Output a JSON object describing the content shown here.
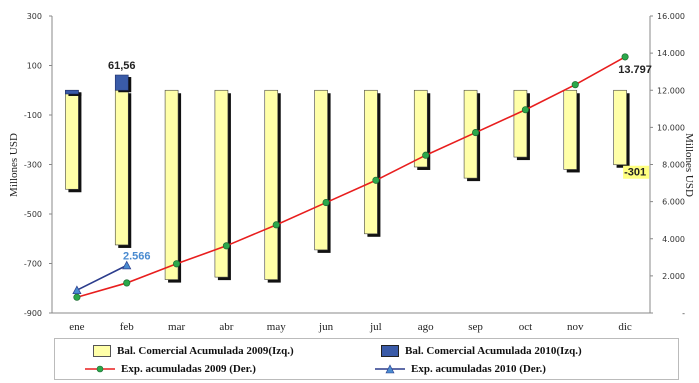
{
  "chart_data": {
    "type": "bar+line",
    "categories": [
      "ene",
      "feb",
      "mar",
      "abr",
      "may",
      "jun",
      "jul",
      "ago",
      "sep",
      "oct",
      "nov",
      "dic"
    ],
    "left_axis": {
      "label": "Millones USD",
      "range": [
        -900,
        300
      ],
      "ticks": [
        "300",
        "100",
        "-100",
        "-300",
        "-500",
        "-700",
        "-900"
      ]
    },
    "right_axis": {
      "label": "Millones USD",
      "range": [
        0,
        16000
      ],
      "ticks": [
        "16.000",
        "14.000",
        "12.000",
        "10.000",
        "8.000",
        "6.000",
        "4.000",
        "2.000",
        "-"
      ]
    },
    "bar_series": [
      {
        "name": "Bal. Comercial Acumulada 2009(Izq.)",
        "color": "#FFFFA8",
        "axis": "left",
        "values": [
          -400,
          -625,
          -765,
          -755,
          -765,
          -645,
          -580,
          -310,
          -355,
          -270,
          -320,
          -301
        ]
      },
      {
        "name": "Bal. Comercial Acumulada 2010(Izq.)",
        "color": "#3A5BA8",
        "axis": "left",
        "values": [
          -15,
          61.56,
          null,
          null,
          null,
          null,
          null,
          null,
          null,
          null,
          null,
          null
        ]
      }
    ],
    "line_series": [
      {
        "name": "Exp. acumuladas 2009 (Der.)",
        "color": "#E81E1E",
        "marker": "circle",
        "marker_color": "#2BA84A",
        "axis": "right",
        "values": [
          850,
          1620,
          2650,
          3620,
          4750,
          5950,
          7150,
          8500,
          9720,
          10950,
          12300,
          13797
        ]
      },
      {
        "name": "Exp. acumuladas 2010 (Der.)",
        "color": "#2B3C8C",
        "marker": "triangle",
        "marker_color": "#4A8BD0",
        "axis": "right",
        "values": [
          1230,
          2566,
          null,
          null,
          null,
          null,
          null,
          null,
          null,
          null,
          null,
          null
        ]
      }
    ],
    "data_labels": [
      {
        "text": "61,56",
        "series": "bar2010",
        "index": 1,
        "color": "#222222"
      },
      {
        "text": "2.566",
        "series": "line2010",
        "index": 1,
        "color": "#4A8BD0"
      },
      {
        "text": "13.797",
        "series": "line2009",
        "index": 11,
        "color": "#222222"
      },
      {
        "text": "-301",
        "series": "bar2009",
        "index": 11,
        "color": "#222222",
        "highlight": "#FFFF80"
      }
    ],
    "grid": false,
    "legend_position": "bottom"
  }
}
